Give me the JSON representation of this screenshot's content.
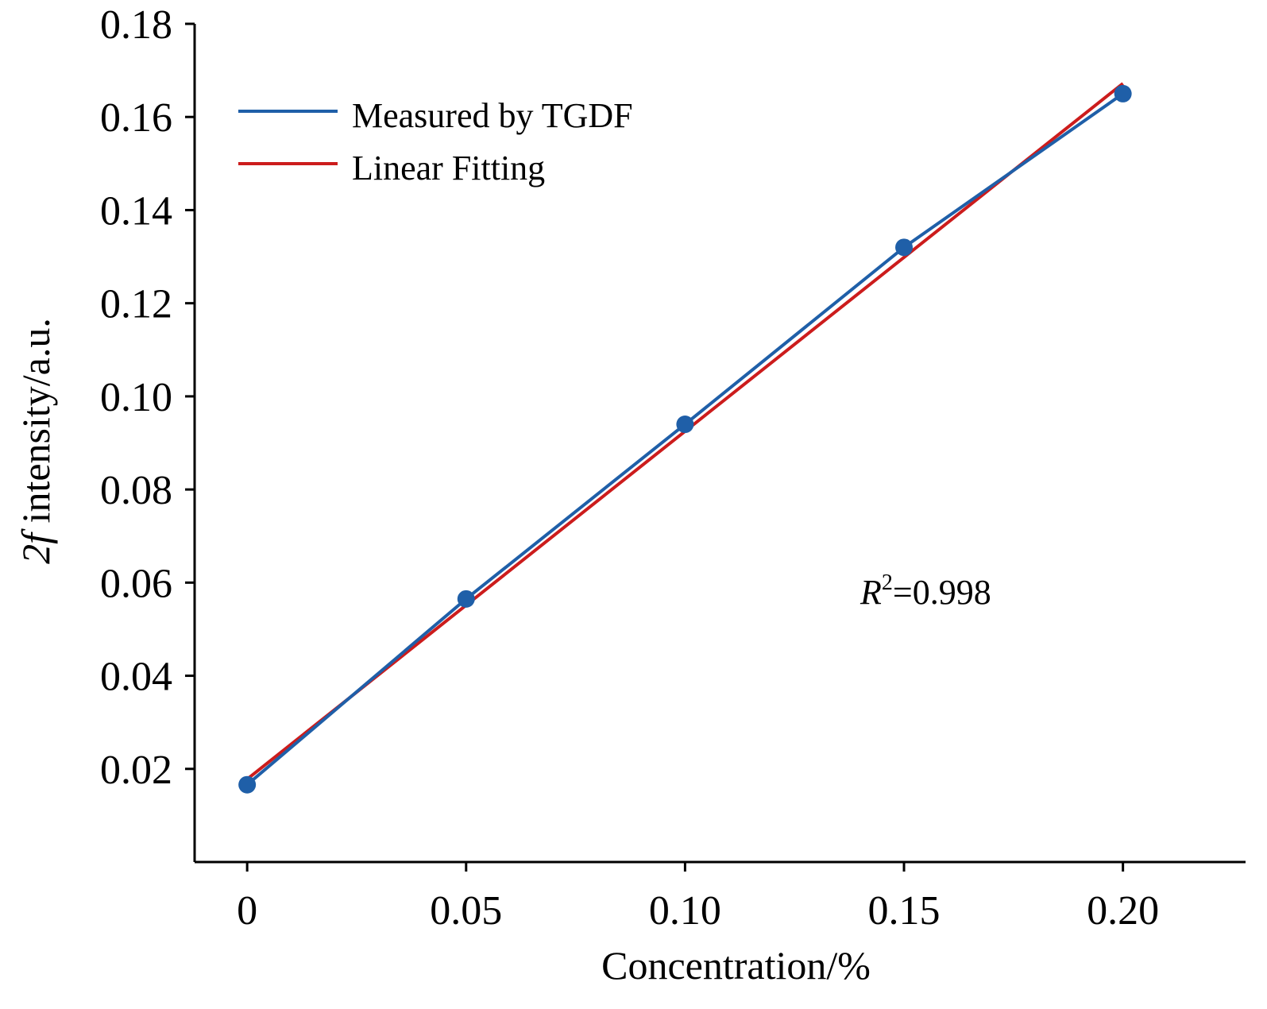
{
  "chart_data": {
    "type": "line",
    "xlabel": "Concentration/%",
    "ylabel_italic": "2f",
    "ylabel_rest": " intensity/a.u.",
    "xlim": [
      -0.012,
      0.228
    ],
    "ylim": [
      0.0,
      0.18
    ],
    "x_ticks": [
      0,
      0.05,
      0.1,
      0.15,
      0.2
    ],
    "x_tick_labels": [
      "0",
      "0.05",
      "0.10",
      "0.15",
      "0.20"
    ],
    "y_ticks": [
      0.02,
      0.04,
      0.06,
      0.08,
      0.1,
      0.12,
      0.14,
      0.16,
      0.18
    ],
    "y_tick_labels": [
      "0.02",
      "0.04",
      "0.06",
      "0.08",
      "0.10",
      "0.12",
      "0.14",
      "0.16",
      "0.18"
    ],
    "grid": false,
    "legend_position": "top-left",
    "series": [
      {
        "name": "Measured by TGDF",
        "color": "#1f5fa8",
        "markers": true,
        "x": [
          0,
          0.05,
          0.1,
          0.15,
          0.2
        ],
        "y": [
          0.0166,
          0.0565,
          0.094,
          0.132,
          0.165
        ]
      },
      {
        "name": "Linear Fitting",
        "color": "#cc1c1c",
        "markers": false,
        "x": [
          0,
          0.2
        ],
        "y": [
          0.0178,
          0.1672
        ]
      }
    ],
    "annotation": {
      "r_symbol": "R",
      "superscript": "2",
      "value_text": "=0.998"
    }
  }
}
